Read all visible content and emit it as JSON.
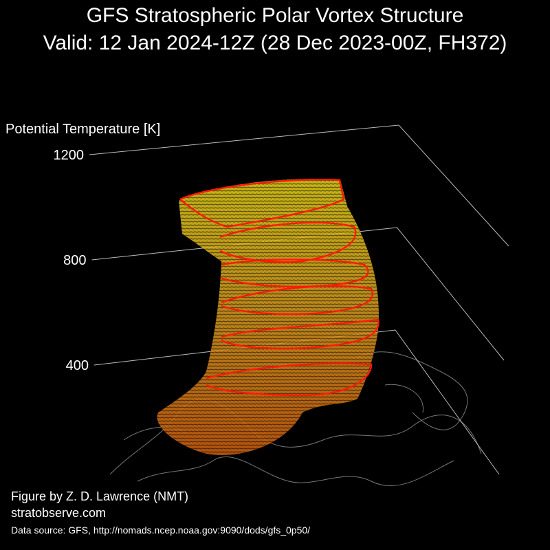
{
  "chart_data": {
    "type": "surface3d",
    "title": "GFS Stratospheric Polar Vortex Structure",
    "subtitle": "Valid: 12 Jan 2024-12Z  (28 Dec 2023-00Z, FH372)",
    "zlabel": "Potential Temperature [K]",
    "zlim": [
      400,
      1200
    ],
    "zticks": [
      400,
      800,
      1200
    ],
    "credits": [
      "Figure by Z. D. Lawrence (NMT)",
      "stratobserve.com",
      "Data source: GFS, http://nomads.ncep.noaa.gov:9090/dods/gfs_0p50/"
    ]
  }
}
